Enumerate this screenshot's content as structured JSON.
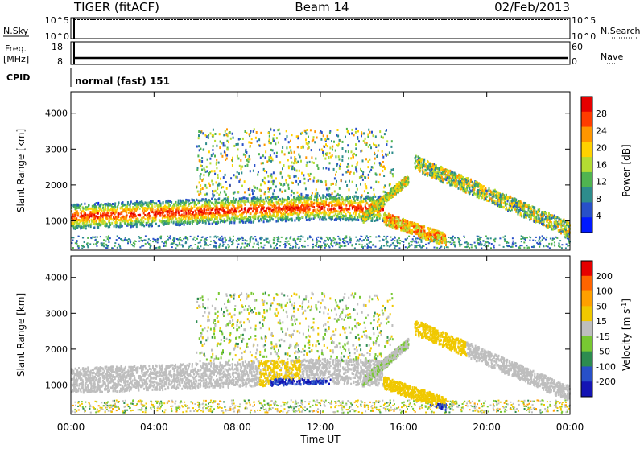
{
  "header": {
    "station": "TIGER (fitACF)",
    "beam": "Beam 14",
    "date": "02/Feb/2013"
  },
  "noise_panel": {
    "left_label": "N.Sky",
    "right_label": "N.Search",
    "left_ticks": [
      "10^5",
      "10^0"
    ],
    "right_ticks": [
      "10^5",
      "10^0"
    ]
  },
  "freq_panel": {
    "left_label": "Freq.",
    "left_unit": "[MHz]",
    "right_label": "Nave",
    "left_ticks": [
      "18",
      "8"
    ],
    "right_ticks": [
      "60",
      "0"
    ]
  },
  "cpid_panel": {
    "label": "CPID",
    "text": "normal (fast) 151"
  },
  "chart_data": [
    {
      "type": "heatmap",
      "panel": "power",
      "ylabel": "Slant Range [km]",
      "xlabel": "Time UT",
      "ylim": [
        180,
        4600
      ],
      "xlim": [
        0,
        24
      ],
      "yticks": [
        1000,
        2000,
        3000,
        4000
      ],
      "xticks": [
        "00:00",
        "04:00",
        "08:00",
        "12:00",
        "16:00",
        "20:00",
        "00:00"
      ],
      "colorbar": {
        "label": "Power [dB]",
        "ticks": [
          "28",
          "24",
          "20",
          "16",
          "12",
          "8",
          "4"
        ],
        "range": [
          0,
          32
        ],
        "colors": [
          "#0019ff",
          "#2850c8",
          "#2d8c8c",
          "#50b450",
          "#b4dc32",
          "#ffd200",
          "#ff9600",
          "#ff3c00",
          "#e60000"
        ]
      }
    },
    {
      "type": "heatmap",
      "panel": "velocity",
      "ylabel": "Slant Range [km]",
      "xlabel": "Time UT",
      "ylim": [
        180,
        4600
      ],
      "xlim": [
        0,
        24
      ],
      "yticks": [
        1000,
        2000,
        3000,
        4000
      ],
      "xticks": [
        "00:00",
        "04:00",
        "08:00",
        "12:00",
        "16:00",
        "20:00",
        "00:00"
      ],
      "colorbar": {
        "label": "Velocity [m s",
        "label_sup": "-1",
        "label_end": "]",
        "ticks": [
          "200",
          "100",
          "50",
          "15",
          "-15",
          "-50",
          "-100",
          "-200"
        ],
        "range": [
          -250,
          250
        ],
        "colors": [
          "#1414b4",
          "#2850c8",
          "#2d8c50",
          "#78c832",
          "#bebebe",
          "#f0c800",
          "#ffa000",
          "#ff6400",
          "#e60000"
        ]
      }
    }
  ]
}
